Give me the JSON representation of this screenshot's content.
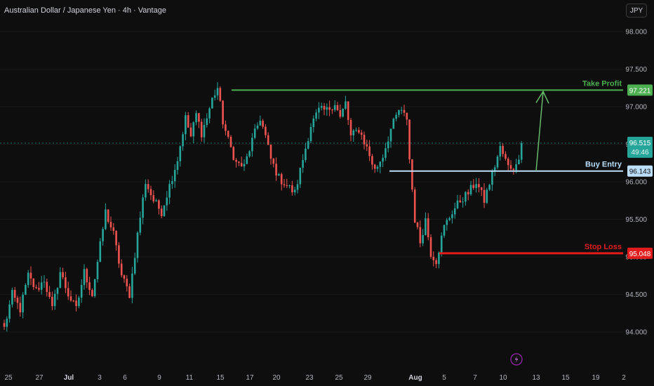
{
  "header": {
    "title": "Australian Dollar / Japanese Yen · 4h · Vantage",
    "currency_button": "JPY"
  },
  "colors": {
    "background": "#0e0e0e",
    "bull": "#26a69a",
    "bear": "#ef5350",
    "take_profit": "#4caf50",
    "buy_entry": "#bbdefb",
    "stop_loss": "#e21c1c",
    "arrow": "#66bb6a",
    "last_price": "#26a69a"
  },
  "chart_data": {
    "type": "candlestick",
    "symbol": "AUDJPY",
    "timeframe": "4h",
    "ylim": [
      93.75,
      98.25
    ],
    "y_ticks": [
      "98.000",
      "97.500",
      "97.000",
      "96.500",
      "96.000",
      "95.500",
      "95.000",
      "94.500",
      "94.000"
    ],
    "y_tick_values": [
      98.0,
      97.5,
      97.0,
      96.5,
      96.0,
      95.5,
      95.0,
      94.5,
      94.0
    ],
    "x_ticks": [
      "25",
      "27",
      "Jul",
      "3",
      "6",
      "9",
      "11",
      "15",
      "17",
      "20",
      "23",
      "25",
      "29",
      "Aug",
      "5",
      "7",
      "10",
      "13",
      "15",
      "19",
      "2"
    ],
    "x_tick_bold": [
      "Jul",
      "Aug"
    ],
    "price_path": [
      {
        "bar": 0,
        "price": 94.05
      },
      {
        "bar": 3,
        "price": 94.5
      },
      {
        "bar": 6,
        "price": 94.3
      },
      {
        "bar": 9,
        "price": 94.75
      },
      {
        "bar": 12,
        "price": 94.55
      },
      {
        "bar": 15,
        "price": 94.7
      },
      {
        "bar": 18,
        "price": 94.3
      },
      {
        "bar": 21,
        "price": 94.8
      },
      {
        "bar": 24,
        "price": 94.5
      },
      {
        "bar": 27,
        "price": 94.3
      },
      {
        "bar": 30,
        "price": 94.8
      },
      {
        "bar": 33,
        "price": 94.5
      },
      {
        "bar": 36,
        "price": 95.15
      },
      {
        "bar": 38,
        "price": 95.6
      },
      {
        "bar": 41,
        "price": 95.3
      },
      {
        "bar": 44,
        "price": 94.75
      },
      {
        "bar": 47,
        "price": 94.5
      },
      {
        "bar": 50,
        "price": 95.3
      },
      {
        "bar": 53,
        "price": 96.0
      },
      {
        "bar": 56,
        "price": 95.75
      },
      {
        "bar": 59,
        "price": 95.6
      },
      {
        "bar": 62,
        "price": 95.95
      },
      {
        "bar": 65,
        "price": 96.3
      },
      {
        "bar": 68,
        "price": 96.85
      },
      {
        "bar": 70,
        "price": 96.6
      },
      {
        "bar": 72,
        "price": 96.9
      },
      {
        "bar": 74,
        "price": 96.65
      },
      {
        "bar": 76,
        "price": 96.85
      },
      {
        "bar": 78,
        "price": 97.1
      },
      {
        "bar": 80,
        "price": 97.25
      },
      {
        "bar": 82,
        "price": 96.8
      },
      {
        "bar": 84,
        "price": 96.55
      },
      {
        "bar": 87,
        "price": 96.25
      },
      {
        "bar": 90,
        "price": 96.2
      },
      {
        "bar": 93,
        "price": 96.55
      },
      {
        "bar": 96,
        "price": 96.85
      },
      {
        "bar": 98,
        "price": 96.6
      },
      {
        "bar": 100,
        "price": 96.3
      },
      {
        "bar": 103,
        "price": 96.05
      },
      {
        "bar": 106,
        "price": 95.95
      },
      {
        "bar": 109,
        "price": 95.85
      },
      {
        "bar": 112,
        "price": 96.3
      },
      {
        "bar": 115,
        "price": 96.75
      },
      {
        "bar": 118,
        "price": 96.95
      },
      {
        "bar": 121,
        "price": 96.95
      },
      {
        "bar": 124,
        "price": 97.05
      },
      {
        "bar": 126,
        "price": 96.85
      },
      {
        "bar": 128,
        "price": 97.05
      },
      {
        "bar": 130,
        "price": 96.6
      },
      {
        "bar": 133,
        "price": 96.7
      },
      {
        "bar": 136,
        "price": 96.45
      },
      {
        "bar": 139,
        "price": 96.15
      },
      {
        "bar": 142,
        "price": 96.35
      },
      {
        "bar": 145,
        "price": 96.7
      },
      {
        "bar": 148,
        "price": 96.95
      },
      {
        "bar": 151,
        "price": 96.85
      },
      {
        "bar": 152,
        "price": 96.3
      },
      {
        "bar": 154,
        "price": 95.5
      },
      {
        "bar": 156,
        "price": 95.2
      },
      {
        "bar": 158,
        "price": 95.5
      },
      {
        "bar": 160,
        "price": 95.05
      },
      {
        "bar": 162,
        "price": 94.95
      },
      {
        "bar": 165,
        "price": 95.4
      },
      {
        "bar": 168,
        "price": 95.6
      },
      {
        "bar": 171,
        "price": 95.75
      },
      {
        "bar": 174,
        "price": 95.85
      },
      {
        "bar": 177,
        "price": 96.0
      },
      {
        "bar": 180,
        "price": 95.75
      },
      {
        "bar": 183,
        "price": 96.1
      },
      {
        "bar": 186,
        "price": 96.45
      },
      {
        "bar": 189,
        "price": 96.2
      },
      {
        "bar": 192,
        "price": 96.2
      },
      {
        "bar": 194,
        "price": 96.5
      }
    ],
    "last_price": "96.515",
    "last_price_value": 96.515,
    "countdown": "49:46",
    "levels": [
      {
        "name": "Take Profit",
        "price": "97.221",
        "value": 97.221
      },
      {
        "name": "Buy Entry",
        "price": "96.143",
        "value": 96.143
      },
      {
        "name": "Stop Loss",
        "price": "95.048",
        "value": 95.048
      }
    ],
    "annotation": "arrow from Buy Entry up to Take Profit"
  }
}
